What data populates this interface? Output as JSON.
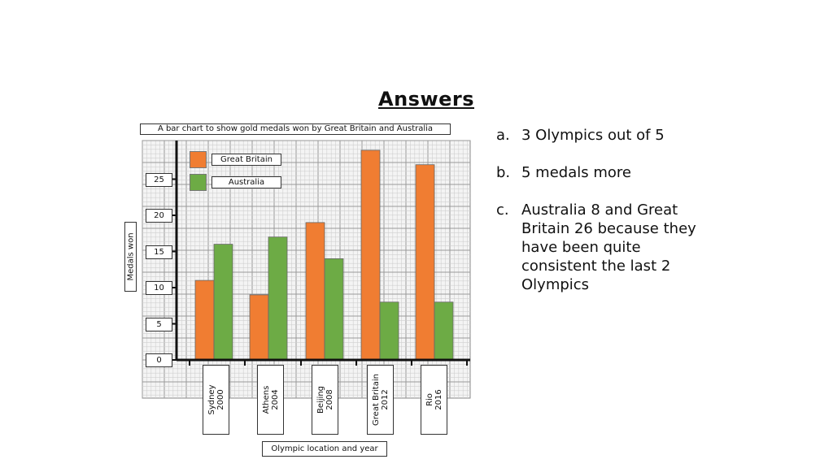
{
  "page": {
    "title": "Answers",
    "answers": [
      {
        "letter": "a.",
        "text": "3 Olympics out of 5"
      },
      {
        "letter": "b.",
        "text": "5 medals more"
      },
      {
        "letter": "c.",
        "text": "Australia 8 and Great Britain 26 because they have been quite consistent the last 2 Olympics"
      }
    ]
  },
  "chart_data": {
    "type": "bar",
    "title": "A bar chart to show gold medals won by Great Britain and Australia",
    "xlabel": "Olympic location and year",
    "ylabel": "Medals won",
    "categories": [
      [
        "Sydney",
        "2000"
      ],
      [
        "Athens",
        "2004"
      ],
      [
        "Beijing",
        "2008"
      ],
      [
        "Great Britain",
        "2012"
      ],
      [
        "Rio",
        "2016"
      ]
    ],
    "series": [
      {
        "name": "Great Britain",
        "color": "#f07d32",
        "values": [
          11,
          9,
          19,
          29,
          27
        ]
      },
      {
        "name": "Australia",
        "color": "#6dab45",
        "values": [
          16,
          17,
          14,
          8,
          8
        ]
      }
    ],
    "yticks": [
      0,
      5,
      10,
      15,
      20,
      25
    ],
    "ylim": [
      0,
      30
    ],
    "grid": true,
    "legend_position": "top-left"
  }
}
